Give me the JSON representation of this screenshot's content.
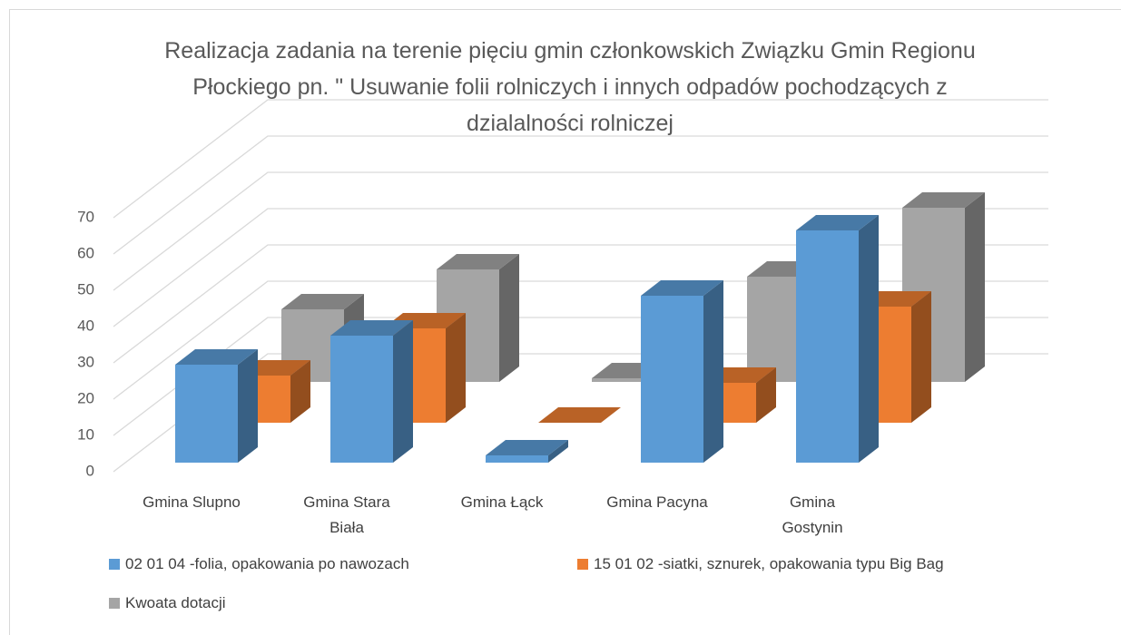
{
  "chart_data": {
    "type": "bar3d",
    "title": "Realizacja zadania na terenie pięciu gmin członkowskich Związku Gmin Regionu Płockiego pn. \" Usuwanie folii rolniczych i innych odpadów pochodzących z dzialalności rolniczej",
    "categories": [
      "Gmina Slupno",
      "Gmina Stara Biała",
      "Gmina Łąck",
      "Gmina Pacyna",
      "Gmina Gostynin"
    ],
    "series": [
      {
        "name": "02 01 04 -folia, opakowania po nawozach",
        "color": "#5b9bd5",
        "values": [
          27,
          35,
          2,
          46,
          64
        ]
      },
      {
        "name": "15 01 02 -siatki, sznurek, opakowania typu Big Bag",
        "color": "#ed7d31",
        "values": [
          13,
          26,
          0,
          11,
          32
        ]
      },
      {
        "name": "Kwoata dotacji",
        "color": "#a5a5a5",
        "values": [
          20,
          31,
          1,
          29,
          48
        ]
      }
    ],
    "ylim": [
      0,
      70
    ],
    "yticks": [
      0,
      10,
      20,
      30,
      40,
      50,
      60,
      70
    ],
    "grid": true
  }
}
